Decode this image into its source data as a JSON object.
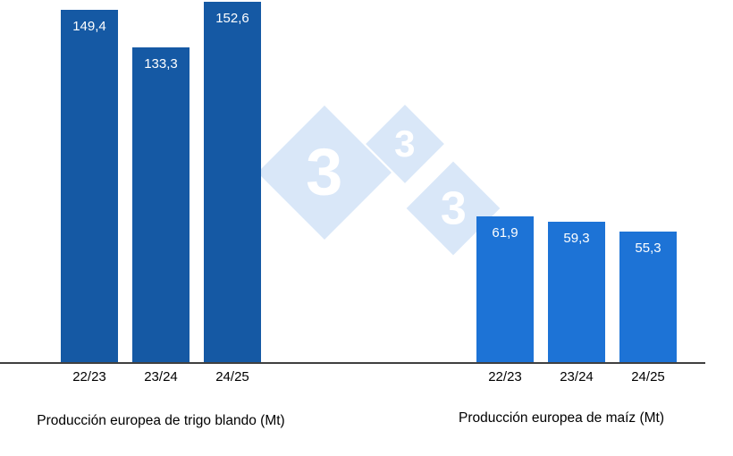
{
  "chart_data": {
    "type": "bar",
    "grid": false,
    "ylim": [
      0,
      155
    ],
    "decimal_separator": ",",
    "groups": [
      {
        "title": "Producción europea de trigo blando (Mt)",
        "categories": [
          "22/23",
          "23/24",
          "24/25"
        ],
        "values": [
          149.4,
          133.3,
          152.6
        ],
        "labels": [
          "149,4",
          "133,3",
          "152,6"
        ],
        "bar_color": "#1559a4"
      },
      {
        "title": "Producción europea de maíz (Mt)",
        "categories": [
          "22/23",
          "23/24",
          "24/25"
        ],
        "values": [
          61.9,
          59.3,
          55.3
        ],
        "labels": [
          "61,9",
          "59,3",
          "55,3"
        ],
        "bar_color": "#1d73d6"
      }
    ]
  },
  "watermark": {
    "digit": "3",
    "diamond_color": "#d9e7f8",
    "digit_color": "#ffffff"
  },
  "layout_colors": {
    "background": "#ffffff",
    "axis": "#404040",
    "value_label_text": "#ffffff"
  }
}
